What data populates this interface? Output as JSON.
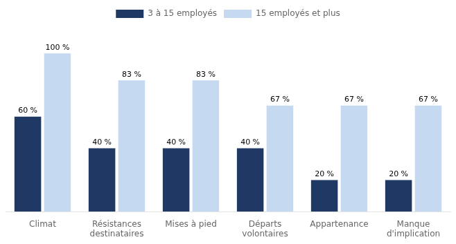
{
  "chart_data": {
    "type": "bar",
    "categories": [
      "Climat",
      "Résistances\ndestinataires",
      "Mises à pied",
      "Départs\nvolontaires",
      "Appartenance",
      "Manque\nd'implication"
    ],
    "series": [
      {
        "name": "3 à 15 employés",
        "color": "#1F3864",
        "values": [
          60,
          40,
          40,
          40,
          20,
          20
        ],
        "value_labels": [
          "60 %",
          "40 %",
          "40 %",
          "40 %",
          "20 %",
          "20 %"
        ]
      },
      {
        "name": "15 employés et plus",
        "color": "#C5D9F1",
        "values": [
          100,
          83,
          83,
          67,
          67,
          67
        ],
        "value_labels": [
          "100 %",
          "83 %",
          "83 %",
          "67 %",
          "67 %",
          "67 %"
        ]
      }
    ],
    "ylim": [
      0,
      118
    ],
    "grid": false,
    "legend": "top",
    "data_labels": true,
    "tick_labels": "x"
  }
}
